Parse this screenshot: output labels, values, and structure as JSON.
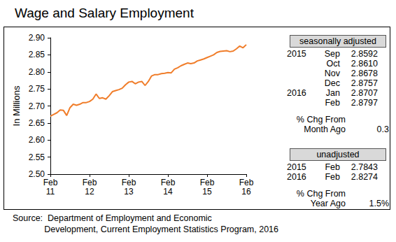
{
  "chart_data": {
    "type": "line",
    "title": "Wage and Salary Employment",
    "ylabel": "In Millions",
    "categories": [
      "Feb\n11",
      null,
      null,
      null,
      null,
      null,
      null,
      null,
      null,
      null,
      null,
      null,
      "Feb\n12",
      null,
      null,
      null,
      null,
      null,
      null,
      null,
      null,
      null,
      null,
      null,
      "Feb\n13",
      null,
      null,
      null,
      null,
      null,
      null,
      null,
      null,
      null,
      null,
      null,
      "Feb\n14",
      null,
      null,
      null,
      null,
      null,
      null,
      null,
      null,
      null,
      null,
      null,
      "Feb\n15",
      null,
      null,
      null,
      null,
      null,
      null,
      null,
      null,
      null,
      null,
      null,
      "Feb\n16"
    ],
    "values": [
      2.67,
      2.675,
      2.68,
      2.688,
      2.687,
      2.672,
      2.695,
      2.705,
      2.702,
      2.705,
      2.71,
      2.71,
      2.713,
      2.72,
      2.735,
      2.722,
      2.724,
      2.72,
      2.73,
      2.742,
      2.745,
      2.748,
      2.752,
      2.762,
      2.77,
      2.772,
      2.765,
      2.77,
      2.772,
      2.76,
      2.772,
      2.788,
      2.792,
      2.792,
      2.795,
      2.796,
      2.798,
      2.797,
      2.808,
      2.812,
      2.818,
      2.822,
      2.826,
      2.824,
      2.826,
      2.832,
      2.835,
      2.838,
      2.842,
      2.846,
      2.85,
      2.857,
      2.86,
      2.861,
      2.862,
      2.8592,
      2.861,
      2.8678,
      2.8757,
      2.8707,
      2.8797
    ],
    "color": "#f07d2a",
    "ylim": [
      2.5,
      2.9
    ],
    "yticks": [
      {
        "value": 2.5,
        "label": "2.50"
      },
      {
        "value": 2.55,
        "label": "2.55"
      },
      {
        "value": 2.6,
        "label": "2.60"
      },
      {
        "value": 2.65,
        "label": "2.65"
      },
      {
        "value": 2.7,
        "label": "2.70"
      },
      {
        "value": 2.75,
        "label": "2.75"
      },
      {
        "value": 2.8,
        "label": "2.80"
      },
      {
        "value": 2.85,
        "label": "2.85"
      },
      {
        "value": 2.9,
        "label": "2.90"
      }
    ],
    "grid": false
  },
  "side_panels": [
    {
      "header": "seasonally adjusted",
      "rows": [
        [
          "2015",
          "Sep",
          "2.8592"
        ],
        [
          "",
          "Oct",
          "2.8610"
        ],
        [
          "",
          "Nov",
          "2.8678"
        ],
        [
          "",
          "Dec",
          "2.8757"
        ],
        [
          "2016",
          "Jan",
          "2.8707"
        ],
        [
          "",
          "Feb",
          "2.8797"
        ]
      ],
      "change": {
        "label": "% Chg From\nMonth Ago",
        "value": "0.3"
      }
    },
    {
      "header": "unadjusted",
      "rows": [
        [
          "2015",
          "Feb",
          "2.7843"
        ],
        [
          "2016",
          "Feb",
          "2.8274"
        ]
      ],
      "change": {
        "label": "% Chg From\nYear Ago",
        "value": "1.5%"
      }
    }
  ],
  "source": "Source:  Department of Employment and Economic\n             Development, Current Employment Statistics Program, 2016"
}
